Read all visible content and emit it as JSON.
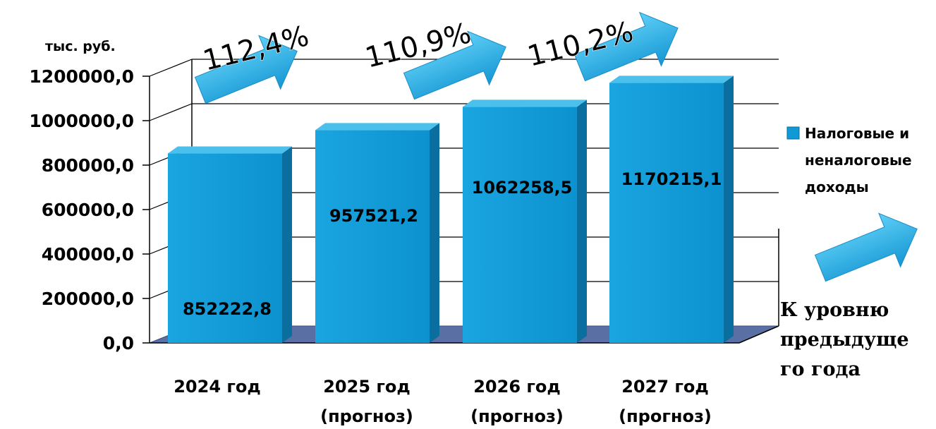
{
  "chart_data": {
    "type": "bar",
    "unit_label": "тыс. руб.",
    "categories": [
      [
        "2024 год"
      ],
      [
        "2025 год",
        "(прогноз)"
      ],
      [
        "2026 год",
        "(прогноз)"
      ],
      [
        "2027 год",
        "(прогноз)"
      ]
    ],
    "series": [
      {
        "name": "Налоговые и неналоговые доходы",
        "name_lines": [
          "Налоговые и",
          "неналоговые",
          "доходы"
        ],
        "values": [
          852222.8,
          957521.2,
          1062258.5,
          1170215.1
        ],
        "value_labels": [
          "852222,8",
          "957521,2",
          "1062258,5",
          "1170215,1"
        ],
        "color": "#0f9ad6"
      }
    ],
    "ylim": [
      0,
      1200000
    ],
    "yticks": [
      0,
      200000,
      400000,
      600000,
      800000,
      1000000,
      1200000
    ],
    "ytick_labels": [
      "0,0",
      "200000,0",
      "400000,0",
      "600000,0",
      "800000,0",
      "1000000,0",
      "1200000,0"
    ],
    "growth_rates": [
      "112,4%",
      "110,9%",
      "110,2%"
    ],
    "growth_legend_lines": [
      "К уровню",
      "предыдуще",
      "го года"
    ],
    "grid": true,
    "legend_position": "right",
    "colors": {
      "bar": "#0f9ad6",
      "bar_side": "#0a6f9f",
      "bar_top": "#4cc0ec",
      "arrow": "#23aee8",
      "floor": "#5a6fa3"
    }
  }
}
